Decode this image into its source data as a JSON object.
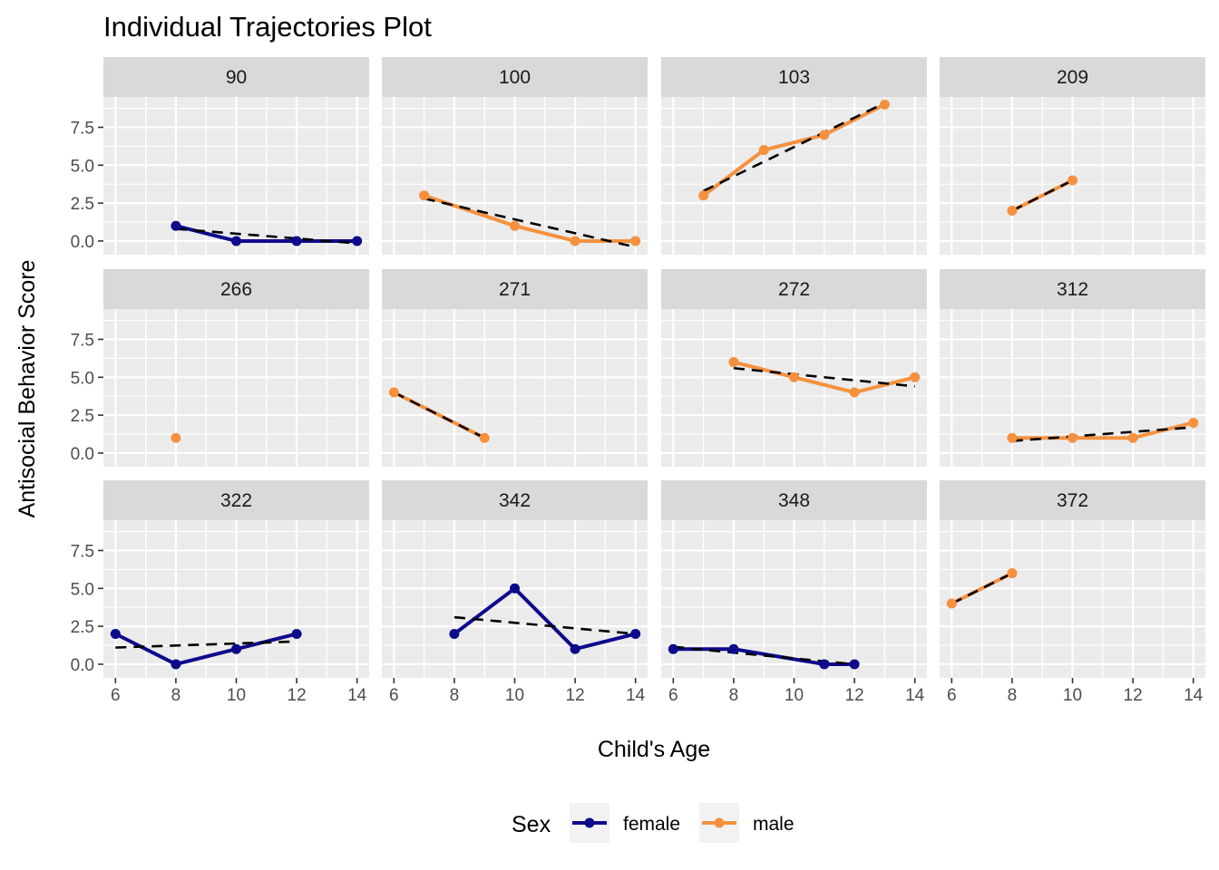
{
  "chart_data": {
    "type": "line",
    "title": "Individual Trajectories Plot",
    "xlabel": "Child's Age",
    "ylabel": "Antisocial Behavior Score",
    "xlim": [
      5.6,
      14.4
    ],
    "ylim": [
      -0.9,
      9.5
    ],
    "x_ticks": [
      6,
      8,
      10,
      12,
      14
    ],
    "x_tick_labels": [
      "6",
      "8",
      "10",
      "12",
      "14"
    ],
    "y_ticks": [
      0,
      2.5,
      5,
      7.5
    ],
    "y_tick_labels": [
      "0.0",
      "2.5",
      "5.0",
      "7.5"
    ],
    "grid": true,
    "facet_columns": 4,
    "legend": {
      "title": "Sex",
      "placement": "bottom",
      "entries": [
        {
          "name": "female",
          "color": "#0d0a8c"
        },
        {
          "name": "male",
          "color": "#f5913e"
        }
      ]
    },
    "trend_line_style": {
      "color": "#000000",
      "dash": "dashed"
    },
    "panels": [
      {
        "label": "90",
        "sex": "female",
        "x": [
          8,
          10,
          12,
          14
        ],
        "y": [
          1,
          0,
          0,
          0
        ],
        "trend": [
          [
            8,
            0.8
          ],
          [
            14,
            -0.15
          ]
        ]
      },
      {
        "label": "100",
        "sex": "male",
        "x": [
          7,
          10,
          12,
          14
        ],
        "y": [
          3,
          1,
          0,
          0
        ],
        "trend": [
          [
            7,
            2.8
          ],
          [
            14,
            -0.4
          ]
        ]
      },
      {
        "label": "103",
        "sex": "male",
        "x": [
          7,
          9,
          11,
          13
        ],
        "y": [
          3,
          6,
          7,
          9
        ],
        "trend": [
          [
            7,
            3.3
          ],
          [
            13,
            9.1
          ]
        ]
      },
      {
        "label": "209",
        "sex": "male",
        "x": [
          8,
          10
        ],
        "y": [
          2,
          4
        ],
        "trend": [
          [
            8,
            2
          ],
          [
            10,
            4
          ]
        ]
      },
      {
        "label": "266",
        "sex": "male",
        "x": [
          8
        ],
        "y": [
          1
        ],
        "trend": []
      },
      {
        "label": "271",
        "sex": "male",
        "x": [
          6,
          9
        ],
        "y": [
          4,
          1
        ],
        "trend": [
          [
            6,
            4
          ],
          [
            9,
            1
          ]
        ]
      },
      {
        "label": "272",
        "sex": "male",
        "x": [
          8,
          10,
          12,
          14
        ],
        "y": [
          6,
          5,
          4,
          5
        ],
        "trend": [
          [
            8,
            5.6
          ],
          [
            14,
            4.4
          ]
        ]
      },
      {
        "label": "312",
        "sex": "male",
        "x": [
          8,
          10,
          12,
          14
        ],
        "y": [
          1,
          1,
          1,
          2
        ],
        "trend": [
          [
            8,
            0.8
          ],
          [
            14,
            1.7
          ]
        ]
      },
      {
        "label": "322",
        "sex": "female",
        "x": [
          6,
          8,
          10,
          12
        ],
        "y": [
          2,
          0,
          1,
          2
        ],
        "trend": [
          [
            6,
            1.1
          ],
          [
            12,
            1.5
          ]
        ]
      },
      {
        "label": "342",
        "sex": "female",
        "x": [
          8,
          10,
          12,
          14
        ],
        "y": [
          2,
          5,
          1,
          2
        ],
        "trend": [
          [
            8,
            3.1
          ],
          [
            14,
            2.0
          ]
        ]
      },
      {
        "label": "348",
        "sex": "female",
        "x": [
          6,
          8,
          11,
          12
        ],
        "y": [
          1,
          1,
          0,
          0
        ],
        "trend": [
          [
            6,
            1.15
          ],
          [
            12,
            0
          ]
        ]
      },
      {
        "label": "372",
        "sex": "male",
        "x": [
          6,
          8
        ],
        "y": [
          4,
          6
        ],
        "trend": [
          [
            6,
            4
          ],
          [
            8,
            6
          ]
        ]
      }
    ]
  }
}
